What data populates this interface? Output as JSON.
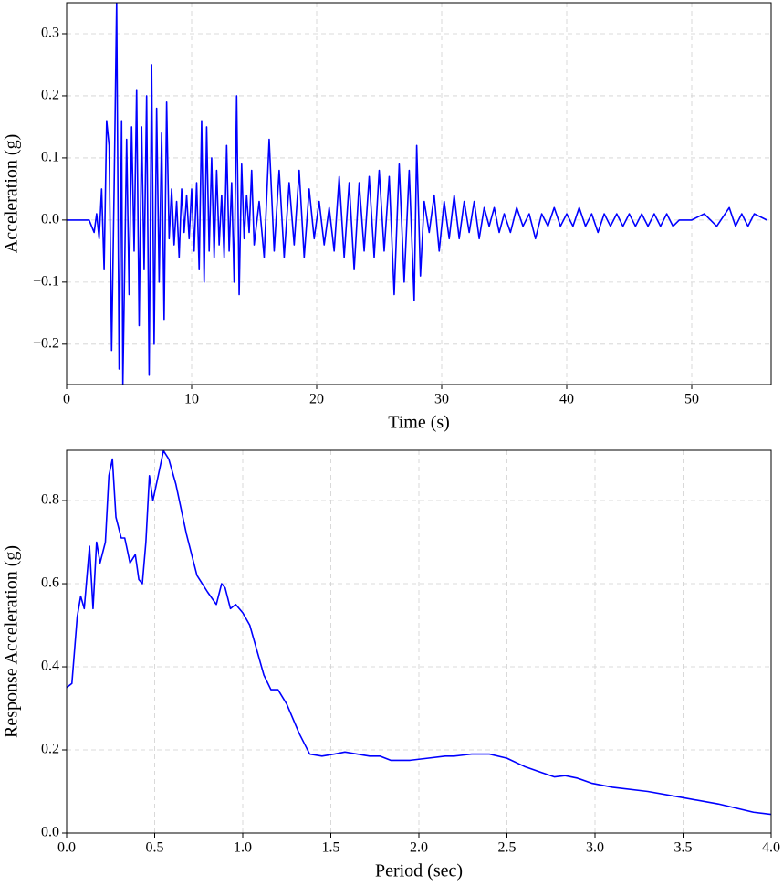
{
  "chart_data": [
    {
      "type": "line",
      "xlabel": "Time (s)",
      "ylabel": "Acceleration (g)",
      "grid": true,
      "xlim": [
        0,
        56.35
      ],
      "ylim": [
        -0.265,
        0.35
      ],
      "xticks": [
        0,
        10,
        20,
        30,
        40,
        50
      ],
      "yticks": [
        {
          "value": -0.2,
          "label": "−0.2"
        },
        {
          "value": -0.1,
          "label": "−0.1"
        },
        {
          "value": 0,
          "label": "0.0"
        },
        0.1,
        0.2,
        0.3
      ],
      "x": [
        0,
        1,
        1.8,
        2.0,
        2.2,
        2.4,
        2.6,
        2.8,
        3.0,
        3.2,
        3.4,
        3.6,
        3.8,
        4.0,
        4.2,
        4.4,
        4.5,
        4.8,
        5.0,
        5.2,
        5.4,
        5.6,
        5.8,
        6.0,
        6.2,
        6.4,
        6.6,
        6.8,
        7.0,
        7.2,
        7.4,
        7.6,
        7.8,
        8.0,
        8.2,
        8.4,
        8.6,
        8.8,
        9.0,
        9.2,
        9.4,
        9.6,
        9.8,
        10.0,
        10.2,
        10.4,
        10.6,
        10.8,
        11.0,
        11.2,
        11.4,
        11.6,
        11.8,
        12.0,
        12.2,
        12.4,
        12.6,
        12.8,
        13.0,
        13.2,
        13.4,
        13.6,
        13.8,
        14.0,
        14.2,
        14.4,
        14.6,
        14.8,
        15.0,
        15.4,
        15.8,
        16.2,
        16.6,
        17.0,
        17.4,
        17.8,
        18.2,
        18.6,
        19.0,
        19.4,
        19.8,
        20.2,
        20.6,
        21.0,
        21.4,
        21.8,
        22.2,
        22.6,
        23.0,
        23.4,
        23.8,
        24.2,
        24.6,
        25.0,
        25.4,
        25.8,
        26.2,
        26.6,
        27.0,
        27.4,
        27.8,
        28.0,
        28.3,
        28.6,
        29.0,
        29.4,
        29.8,
        30.2,
        30.6,
        31.0,
        31.4,
        31.8,
        32.2,
        32.6,
        33.0,
        33.4,
        33.8,
        34.2,
        34.6,
        35.0,
        35.5,
        36.0,
        36.5,
        37.0,
        37.5,
        38.0,
        38.5,
        39.0,
        39.5,
        40.0,
        40.5,
        41.0,
        41.5,
        42.0,
        42.5,
        43.0,
        43.5,
        44.0,
        44.5,
        45.0,
        45.5,
        46.0,
        46.5,
        47.0,
        47.5,
        48.0,
        48.5,
        49.0,
        50.0,
        51.0,
        52.0,
        53.0,
        53.5,
        54.0,
        54.5,
        55.0,
        56.0
      ],
      "series": [
        {
          "color": "#0000ff",
          "values": [
            0,
            0,
            0,
            -0.01,
            -0.02,
            0.01,
            -0.03,
            0.05,
            -0.08,
            0.16,
            0.12,
            -0.21,
            0.05,
            0.35,
            -0.24,
            0.16,
            -0.265,
            0.13,
            -0.12,
            0.15,
            -0.05,
            0.21,
            -0.17,
            0.15,
            -0.08,
            0.2,
            -0.25,
            0.25,
            -0.2,
            0.18,
            -0.1,
            0.14,
            -0.16,
            0.19,
            -0.03,
            0.05,
            -0.04,
            0.03,
            -0.06,
            0.05,
            -0.02,
            0.04,
            -0.03,
            0.05,
            -0.05,
            0.06,
            -0.08,
            0.16,
            -0.1,
            0.15,
            -0.05,
            0.1,
            -0.06,
            0.08,
            -0.04,
            0.04,
            -0.06,
            0.12,
            -0.05,
            0.06,
            -0.1,
            0.2,
            -0.12,
            0.09,
            -0.03,
            0.04,
            -0.02,
            0.08,
            -0.04,
            0.03,
            -0.06,
            0.13,
            -0.05,
            0.08,
            -0.06,
            0.06,
            -0.04,
            0.08,
            -0.06,
            0.05,
            -0.03,
            0.03,
            -0.04,
            0.02,
            -0.05,
            0.07,
            -0.06,
            0.06,
            -0.08,
            0.06,
            -0.05,
            0.07,
            -0.06,
            0.08,
            -0.05,
            0.07,
            -0.12,
            0.09,
            -0.1,
            0.08,
            -0.13,
            0.12,
            -0.09,
            0.03,
            -0.02,
            0.04,
            -0.05,
            0.03,
            -0.03,
            0.04,
            -0.03,
            0.03,
            -0.02,
            0.03,
            -0.03,
            0.02,
            -0.01,
            0.02,
            -0.02,
            0.01,
            -0.02,
            0.02,
            -0.01,
            0.01,
            -0.03,
            0.01,
            -0.01,
            0.02,
            -0.01,
            0.01,
            -0.01,
            0.02,
            -0.01,
            0.01,
            -0.02,
            0.01,
            -0.01,
            0.01,
            -0.01,
            0.01,
            -0.01,
            0.01,
            -0.01,
            0.01,
            -0.01,
            0.01,
            -0.01,
            0,
            0,
            0.01,
            -0.01,
            0.02,
            -0.01,
            0.01,
            -0.01,
            0.01,
            0
          ]
        }
      ]
    },
    {
      "type": "line",
      "xlabel": "Period (sec)",
      "ylabel": "Response Acceleration (g)",
      "grid": true,
      "xlim": [
        0,
        4.0
      ],
      "ylim": [
        0,
        0.921
      ],
      "xticks": [
        {
          "value": 0,
          "label": "0.0"
        },
        0.5,
        {
          "value": 1,
          "label": "1.0"
        },
        1.5,
        {
          "value": 2,
          "label": "2.0"
        },
        2.5,
        {
          "value": 3,
          "label": "3.0"
        },
        3.5,
        {
          "value": 4,
          "label": "4.0"
        }
      ],
      "yticks": [
        {
          "value": 0,
          "label": "0.0"
        },
        0.2,
        0.4,
        0.6,
        0.8
      ],
      "x": [
        0.0,
        0.03,
        0.06,
        0.08,
        0.1,
        0.13,
        0.15,
        0.17,
        0.19,
        0.22,
        0.24,
        0.26,
        0.28,
        0.31,
        0.33,
        0.36,
        0.39,
        0.41,
        0.43,
        0.45,
        0.47,
        0.49,
        0.52,
        0.55,
        0.58,
        0.62,
        0.68,
        0.74,
        0.8,
        0.85,
        0.88,
        0.9,
        0.93,
        0.96,
        1.0,
        1.04,
        1.08,
        1.12,
        1.16,
        1.2,
        1.25,
        1.32,
        1.38,
        1.45,
        1.52,
        1.58,
        1.65,
        1.72,
        1.78,
        1.84,
        1.95,
        2.05,
        2.15,
        2.2,
        2.3,
        2.4,
        2.5,
        2.6,
        2.7,
        2.77,
        2.83,
        2.9,
        2.98,
        3.1,
        3.3,
        3.5,
        3.7,
        3.9,
        4.0
      ],
      "series": [
        {
          "color": "#0000ff",
          "values": [
            0.35,
            0.36,
            0.52,
            0.57,
            0.54,
            0.69,
            0.54,
            0.7,
            0.65,
            0.7,
            0.86,
            0.9,
            0.76,
            0.71,
            0.71,
            0.65,
            0.67,
            0.61,
            0.6,
            0.7,
            0.86,
            0.8,
            0.86,
            0.92,
            0.9,
            0.84,
            0.72,
            0.62,
            0.58,
            0.55,
            0.6,
            0.59,
            0.54,
            0.55,
            0.53,
            0.5,
            0.44,
            0.38,
            0.345,
            0.345,
            0.31,
            0.24,
            0.19,
            0.185,
            0.19,
            0.195,
            0.19,
            0.185,
            0.185,
            0.175,
            0.175,
            0.18,
            0.185,
            0.185,
            0.19,
            0.19,
            0.18,
            0.16,
            0.145,
            0.135,
            0.138,
            0.132,
            0.12,
            0.11,
            0.1,
            0.085,
            0.07,
            0.05,
            0.045
          ]
        }
      ]
    }
  ]
}
